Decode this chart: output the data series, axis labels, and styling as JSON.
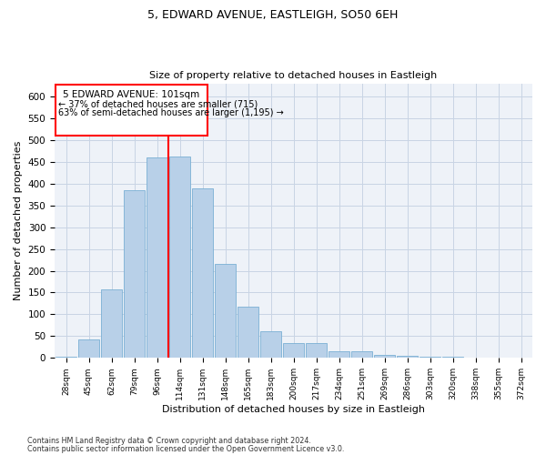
{
  "title1": "5, EDWARD AVENUE, EASTLEIGH, SO50 6EH",
  "title2": "Size of property relative to detached houses in Eastleigh",
  "xlabel": "Distribution of detached houses by size in Eastleigh",
  "ylabel": "Number of detached properties",
  "categories": [
    "28sqm",
    "45sqm",
    "62sqm",
    "79sqm",
    "96sqm",
    "114sqm",
    "131sqm",
    "148sqm",
    "165sqm",
    "183sqm",
    "200sqm",
    "217sqm",
    "234sqm",
    "251sqm",
    "269sqm",
    "286sqm",
    "303sqm",
    "320sqm",
    "338sqm",
    "355sqm",
    "372sqm"
  ],
  "values": [
    3,
    42,
    158,
    385,
    460,
    462,
    390,
    215,
    118,
    62,
    35,
    35,
    15,
    15,
    7,
    5,
    2,
    2,
    1,
    1,
    1
  ],
  "bar_color": "#b8d0e8",
  "bar_edge_color": "#7aafd4",
  "grid_color": "#c8d4e4",
  "vline_color": "red",
  "annotation_title": "5 EDWARD AVENUE: 101sqm",
  "annotation_line1": "← 37% of detached houses are smaller (715)",
  "annotation_line2": "63% of semi-detached houses are larger (1,195) →",
  "annotation_box_color": "red",
  "ylim": [
    0,
    630
  ],
  "yticks": [
    0,
    50,
    100,
    150,
    200,
    250,
    300,
    350,
    400,
    450,
    500,
    550,
    600
  ],
  "footnote1": "Contains HM Land Registry data © Crown copyright and database right 2024.",
  "footnote2": "Contains public sector information licensed under the Open Government Licence v3.0.",
  "bg_color": "#eef2f8"
}
